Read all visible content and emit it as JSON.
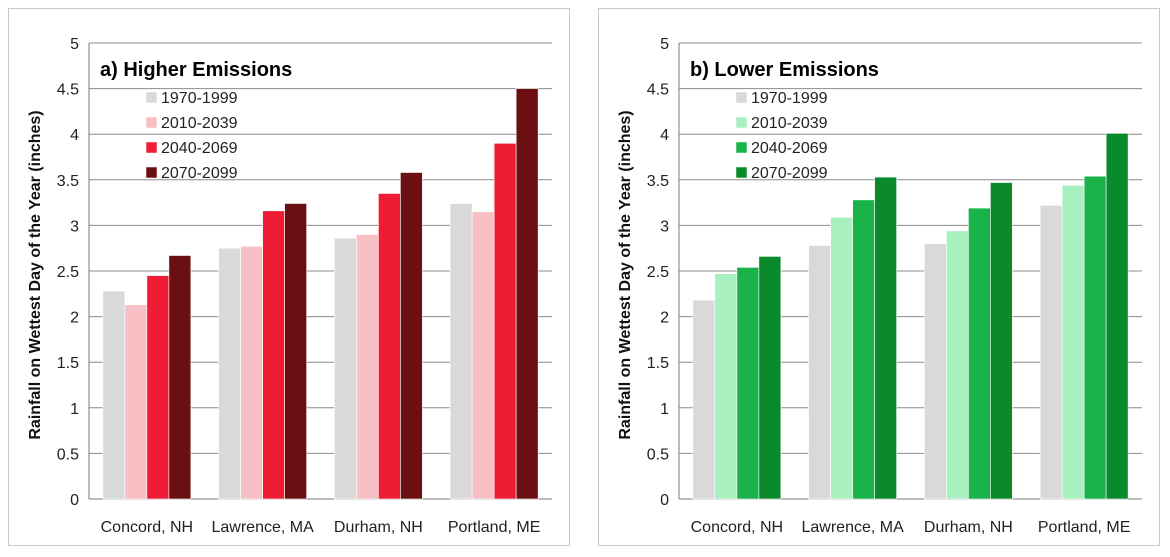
{
  "chart_data": [
    {
      "type": "bar",
      "title": "a) Higher Emissions",
      "ylabel": "Rainfall on Wettest Day of the Year (inches)",
      "xlabel": "",
      "ylim": [
        0,
        5
      ],
      "yticks": [
        "0",
        "0.5",
        "1",
        "1.5",
        "2",
        "2.5",
        "3",
        "3.5",
        "4",
        "4.5",
        "5"
      ],
      "grid": true,
      "legend_position": "top-left",
      "categories": [
        "Concord, NH",
        "Lawrence, MA",
        "Durham, NH",
        "Portland, ME"
      ],
      "series": [
        {
          "name": "1970-1999",
          "color": "#d9d9d9",
          "values": [
            2.28,
            2.75,
            2.86,
            3.24
          ]
        },
        {
          "name": "2010-2039",
          "color": "#f8c0c4",
          "values": [
            2.13,
            2.77,
            2.9,
            3.15
          ]
        },
        {
          "name": "2040-2069",
          "color": "#ee1c35",
          "values": [
            2.45,
            3.16,
            3.35,
            3.9
          ]
        },
        {
          "name": "2070-2099",
          "color": "#6a0f12",
          "values": [
            2.67,
            3.24,
            3.58,
            4.5
          ]
        }
      ]
    },
    {
      "type": "bar",
      "title": "b) Lower Emissions",
      "ylabel": "Rainfall on Wettest Day of the Year (inches)",
      "xlabel": "",
      "ylim": [
        0,
        5
      ],
      "yticks": [
        "0",
        "0.5",
        "1",
        "1.5",
        "2",
        "2.5",
        "3",
        "3.5",
        "4",
        "4.5",
        "5"
      ],
      "grid": true,
      "legend_position": "top-left",
      "categories": [
        "Concord, NH",
        "Lawrence, MA",
        "Durham, NH",
        "Portland, ME"
      ],
      "series": [
        {
          "name": "1970-1999",
          "color": "#d9d9d9",
          "values": [
            2.18,
            2.78,
            2.8,
            3.22
          ]
        },
        {
          "name": "2010-2039",
          "color": "#a8f0c0",
          "values": [
            2.47,
            3.09,
            2.94,
            3.44
          ]
        },
        {
          "name": "2040-2069",
          "color": "#19b34a",
          "values": [
            2.54,
            3.28,
            3.19,
            3.54
          ]
        },
        {
          "name": "2070-2099",
          "color": "#0a8a2a",
          "values": [
            2.66,
            3.53,
            3.47,
            4.01
          ]
        }
      ]
    }
  ]
}
